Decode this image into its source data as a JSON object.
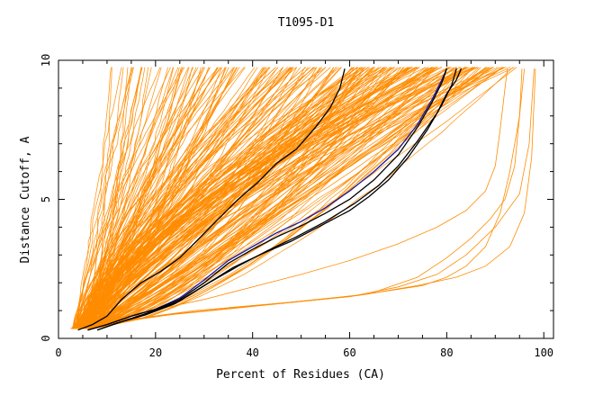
{
  "chart_data": {
    "type": "line",
    "title": "T1095-D1",
    "xlabel": "Percent of Residues (CA)",
    "ylabel": "Distance Cutoff, A",
    "xlim": [
      0,
      102
    ],
    "ylim": [
      0,
      10
    ],
    "grid": false,
    "x_ticks": [
      0,
      20,
      40,
      60,
      80,
      100
    ],
    "y_ticks": [
      0,
      5,
      10
    ],
    "colors": {
      "bundle": "#ff8c00",
      "highlight_blue": "#1a1aa0",
      "highlight_black": "#000000"
    },
    "bundle_model_count": 240,
    "series": [
      {
        "color": "#000000",
        "points": [
          [
            4,
            0.3
          ],
          [
            7,
            0.5
          ],
          [
            10,
            0.8
          ],
          [
            13,
            1.4
          ],
          [
            17,
            2.0
          ],
          [
            21,
            2.4
          ],
          [
            25,
            2.9
          ],
          [
            29,
            3.6
          ],
          [
            33,
            4.3
          ],
          [
            37,
            5.0
          ],
          [
            41,
            5.6
          ],
          [
            45,
            6.3
          ],
          [
            49,
            6.8
          ],
          [
            53,
            7.6
          ],
          [
            56,
            8.3
          ],
          [
            58,
            9.0
          ],
          [
            59,
            9.7
          ]
        ]
      },
      {
        "color": "#1a1aa0",
        "points": [
          [
            6,
            0.3
          ],
          [
            10,
            0.5
          ],
          [
            15,
            0.8
          ],
          [
            20,
            1.05
          ],
          [
            25,
            1.45
          ],
          [
            30,
            2.1
          ],
          [
            35,
            2.8
          ],
          [
            40,
            3.3
          ],
          [
            45,
            3.8
          ],
          [
            50,
            4.2
          ],
          [
            55,
            4.7
          ],
          [
            60,
            5.3
          ],
          [
            65,
            6.0
          ],
          [
            70,
            6.8
          ],
          [
            74,
            7.7
          ],
          [
            77,
            8.6
          ],
          [
            79,
            9.3
          ],
          [
            80,
            9.7
          ]
        ]
      },
      {
        "color": "#000000",
        "points": [
          [
            6,
            0.3
          ],
          [
            10,
            0.5
          ],
          [
            15,
            0.8
          ],
          [
            20,
            1.05
          ],
          [
            25,
            1.4
          ],
          [
            30,
            2.0
          ],
          [
            35,
            2.7
          ],
          [
            40,
            3.2
          ],
          [
            45,
            3.65
          ],
          [
            50,
            4.05
          ],
          [
            55,
            4.5
          ],
          [
            60,
            5.0
          ],
          [
            65,
            5.7
          ],
          [
            70,
            6.6
          ],
          [
            74,
            7.6
          ],
          [
            77,
            8.5
          ],
          [
            79,
            9.2
          ],
          [
            80,
            9.7
          ]
        ]
      },
      {
        "color": "#000000",
        "points": [
          [
            8,
            0.3
          ],
          [
            12,
            0.55
          ],
          [
            18,
            0.85
          ],
          [
            24,
            1.25
          ],
          [
            30,
            1.9
          ],
          [
            36,
            2.55
          ],
          [
            42,
            3.05
          ],
          [
            48,
            3.5
          ],
          [
            54,
            4.05
          ],
          [
            60,
            4.6
          ],
          [
            64,
            5.1
          ],
          [
            68,
            5.7
          ],
          [
            72,
            6.5
          ],
          [
            76,
            7.5
          ],
          [
            79,
            8.4
          ],
          [
            81,
            9.1
          ],
          [
            82,
            9.7
          ]
        ]
      },
      {
        "color": "#000000",
        "points": [
          [
            8,
            0.3
          ],
          [
            13,
            0.6
          ],
          [
            19,
            0.95
          ],
          [
            25,
            1.35
          ],
          [
            31,
            2.0
          ],
          [
            37,
            2.6
          ],
          [
            43,
            3.15
          ],
          [
            49,
            3.65
          ],
          [
            55,
            4.2
          ],
          [
            61,
            4.85
          ],
          [
            66,
            5.5
          ],
          [
            70,
            6.2
          ],
          [
            74,
            7.1
          ],
          [
            78,
            8.1
          ],
          [
            80,
            8.8
          ],
          [
            82,
            9.3
          ],
          [
            83,
            9.7
          ]
        ]
      }
    ]
  }
}
